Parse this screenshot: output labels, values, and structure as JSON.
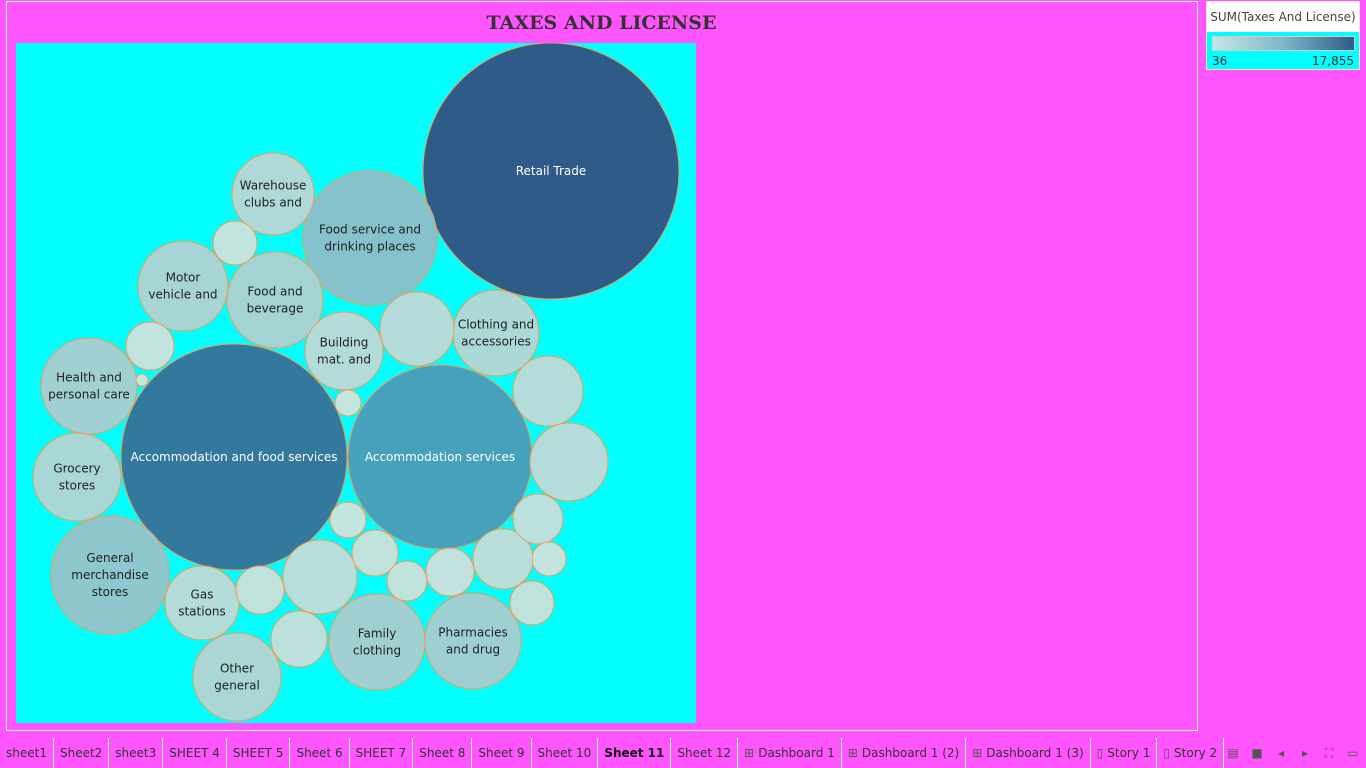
{
  "chart_data": {
    "type": "packed-bubble",
    "title": "TAXES AND LICENSE",
    "measure": "SUM(Taxes And License)",
    "color_range": {
      "min": 36,
      "max": 17855,
      "min_label": "36",
      "max_label": "17,855",
      "min_color": "#c6e7e7",
      "max_color": "#2e5d88"
    },
    "border_color": "#e3a25a",
    "background": "#00ffff",
    "bubbles": [
      {
        "name": "Retail Trade",
        "lines": [
          "Retail Trade"
        ],
        "value": 17855,
        "fill": "#2e5b88",
        "text_color": "#ffffff"
      },
      {
        "name": "Accommodation and food services",
        "lines": [
          "Accommodation and food services"
        ],
        "value": 13600,
        "fill": "#33789d",
        "text_color": "#ffffff"
      },
      {
        "name": "Accommodation services",
        "lines": [
          "Accommodation services"
        ],
        "value": 9200,
        "fill": "#46a2bc",
        "text_color": "#ffffff"
      },
      {
        "name": "Food service and drinking places",
        "lines": [
          "Food service and",
          "drinking places"
        ],
        "value": 4600,
        "fill": "#85c2cc",
        "text_color": "#222222"
      },
      {
        "name": "General merchandise stores",
        "lines": [
          "General",
          "merchandise",
          "stores"
        ],
        "value": 3700,
        "fill": "#8ec7ce",
        "text_color": "#222222"
      },
      {
        "name": "Pharmacies and drug",
        "lines": [
          "Pharmacies",
          "and drug"
        ],
        "value": 2500,
        "fill": "#9ecfd2",
        "text_color": "#222222"
      },
      {
        "name": "Family clothing",
        "lines": [
          "Family",
          "clothing"
        ],
        "value": 2450,
        "fill": "#a1d0d3",
        "text_color": "#222222"
      },
      {
        "name": "Health and personal care",
        "lines": [
          "Health and",
          "personal care"
        ],
        "value": 2450,
        "fill": "#a1d0d3",
        "text_color": "#222222"
      },
      {
        "name": "Food and beverage",
        "lines": [
          "Food and",
          "beverage"
        ],
        "value": 2300,
        "fill": "#a4d3d4",
        "text_color": "#222222"
      },
      {
        "name": "Motor vehicle and",
        "lines": [
          "Motor",
          "vehicle and"
        ],
        "value": 2150,
        "fill": "#a7d5d5",
        "text_color": "#222222"
      },
      {
        "name": "Grocery stores",
        "lines": [
          "Grocery",
          "stores"
        ],
        "value": 2050,
        "fill": "#a9d6d6",
        "text_color": "#222222"
      },
      {
        "name": "Clothing and accessories",
        "lines": [
          "Clothing and",
          "accessories"
        ],
        "value": 1900,
        "fill": "#acd8d7",
        "text_color": "#222222"
      },
      {
        "name": "Other general",
        "lines": [
          "Other",
          "general"
        ],
        "value": 2000,
        "fill": "#aad7d6",
        "text_color": "#222222"
      },
      {
        "name": "Building mat. and",
        "lines": [
          "Building",
          "mat. and"
        ],
        "value": 1500,
        "fill": "#b2dbd9",
        "text_color": "#222222"
      },
      {
        "name": "Gas stations",
        "lines": [
          "Gas",
          "stations"
        ],
        "value": 1450,
        "fill": "#b3dcd9",
        "text_color": "#222222"
      },
      {
        "name": "Warehouse clubs and",
        "lines": [
          "Warehouse",
          "clubs and"
        ],
        "value": 1700,
        "fill": "#afd9d8",
        "text_color": "#222222"
      },
      {
        "name": "",
        "lines": [],
        "value": 1500,
        "fill": "#b2dbd9",
        "text_color": "#222222"
      },
      {
        "name": "",
        "lines": [],
        "value": 1350,
        "fill": "#b4dcda",
        "text_color": "#222222"
      },
      {
        "name": "",
        "lines": [],
        "value": 1400,
        "fill": "#b4dcda",
        "text_color": "#222222"
      },
      {
        "name": "",
        "lines": [],
        "value": 1150,
        "fill": "#b8dedb",
        "text_color": "#222222"
      },
      {
        "name": "",
        "lines": [],
        "value": 850,
        "fill": "#bde0dc",
        "text_color": "#222222"
      },
      {
        "name": "",
        "lines": [],
        "value": 1050,
        "fill": "#b9dfdb",
        "text_color": "#222222"
      },
      {
        "name": "",
        "lines": [],
        "value": 900,
        "fill": "#bce0dc",
        "text_color": "#222222"
      },
      {
        "name": "",
        "lines": [],
        "value": 700,
        "fill": "#c0e2dd",
        "text_color": "#222222"
      },
      {
        "name": "",
        "lines": [],
        "value": 600,
        "fill": "#c1e2de",
        "text_color": "#222222"
      },
      {
        "name": "",
        "lines": [],
        "value": 650,
        "fill": "#c0e2dd",
        "text_color": "#222222"
      },
      {
        "name": "",
        "lines": [],
        "value": 700,
        "fill": "#c0e2dd",
        "text_color": "#222222"
      },
      {
        "name": "",
        "lines": [],
        "value": 650,
        "fill": "#c0e2dd",
        "text_color": "#222222"
      },
      {
        "name": "",
        "lines": [],
        "value": 550,
        "fill": "#c2e3de",
        "text_color": "#222222"
      },
      {
        "name": "",
        "lines": [],
        "value": 450,
        "fill": "#c3e4de",
        "text_color": "#222222"
      },
      {
        "name": "",
        "lines": [],
        "value": 400,
        "fill": "#c4e4df",
        "text_color": "#222222"
      },
      {
        "name": "",
        "lines": [],
        "value": 350,
        "fill": "#c4e4df",
        "text_color": "#222222"
      },
      {
        "name": "",
        "lines": [],
        "value": 250,
        "fill": "#c5e5df",
        "text_color": "#222222"
      },
      {
        "name": "",
        "lines": [],
        "value": 200,
        "fill": "#c5e5df",
        "text_color": "#222222"
      },
      {
        "name": "",
        "lines": [],
        "value": 36,
        "fill": "#c6e6e0",
        "text_color": "#222222"
      }
    ]
  },
  "legend": {
    "title": "SUM(Taxes And License)",
    "min_label": "36",
    "max_label": "17,855"
  },
  "tabs": [
    {
      "label": "sheet1",
      "icon": ""
    },
    {
      "label": "Sheet2",
      "icon": ""
    },
    {
      "label": "sheet3",
      "icon": ""
    },
    {
      "label": "SHEET 4",
      "icon": ""
    },
    {
      "label": "SHEET 5",
      "icon": ""
    },
    {
      "label": "Sheet 6",
      "icon": ""
    },
    {
      "label": "SHEET 7",
      "icon": ""
    },
    {
      "label": "Sheet 8",
      "icon": ""
    },
    {
      "label": "Sheet 9",
      "icon": ""
    },
    {
      "label": "Sheet 10",
      "icon": ""
    },
    {
      "label": "Sheet 11",
      "icon": "",
      "active": true
    },
    {
      "label": "Sheet 12",
      "icon": ""
    },
    {
      "label": "Dashboard 1",
      "icon": "dashboard-icon"
    },
    {
      "label": "Dashboard 1 (2)",
      "icon": "dashboard-icon"
    },
    {
      "label": "Dashboard 1 (3)",
      "icon": "dashboard-icon"
    },
    {
      "label": "Story 1",
      "icon": "story-icon"
    },
    {
      "label": "Story 2",
      "icon": "story-icon"
    }
  ],
  "tab_controls": [
    {
      "name": "show-filmstrip-icon",
      "glyph": "▤"
    },
    {
      "name": "show-sheet-icon",
      "glyph": "■"
    },
    {
      "name": "prev-sheet-icon",
      "glyph": "◂"
    },
    {
      "name": "next-sheet-icon",
      "glyph": "▸"
    },
    {
      "name": "fullscreen-icon",
      "glyph": "⛶"
    },
    {
      "name": "presentation-mode-icon",
      "glyph": "▭"
    }
  ]
}
